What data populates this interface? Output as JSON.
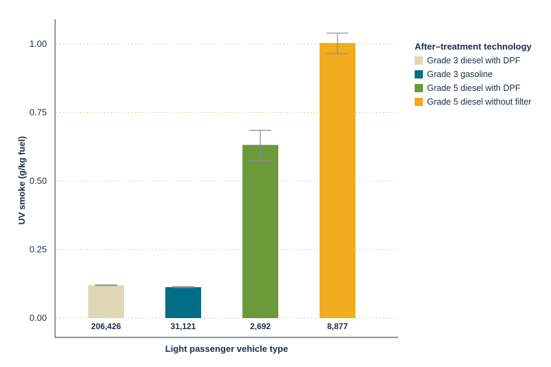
{
  "chart_data": {
    "type": "bar",
    "categories": [
      "Grade 3 diesel with DPF",
      "Grade 3 gasoline",
      "Grade 5 diesel with DPF",
      "Grade 5 diesel without filter"
    ],
    "values": [
      0.12,
      0.113,
      0.632,
      1.004
    ],
    "error_low": [
      0.119,
      0.111,
      0.575,
      0.965
    ],
    "error_high": [
      0.121,
      0.115,
      0.685,
      1.04
    ],
    "counts": [
      "206,426",
      "31,121",
      "2,692",
      "8,877"
    ],
    "colors": [
      "#ded6b5",
      "#006e87",
      "#6a9a3a",
      "#f0ac1e"
    ],
    "xlabel": "Light passenger vehicle type",
    "ylabel": "UV smoke (g/kg fuel)",
    "ylim": [
      0,
      1.1
    ],
    "yticks": [
      "0.00",
      "0.25",
      "0.50",
      "0.75",
      "1.00"
    ],
    "ytick_values": [
      0,
      0.25,
      0.5,
      0.75,
      1.0
    ],
    "grid": true,
    "legend": {
      "title": "After–treatment technology",
      "placement": "right",
      "items": [
        "Grade 3 diesel with DPF",
        "Grade 3 gasoline",
        "Grade 5 diesel with DPF",
        "Grade 5 diesel without filter"
      ]
    }
  }
}
